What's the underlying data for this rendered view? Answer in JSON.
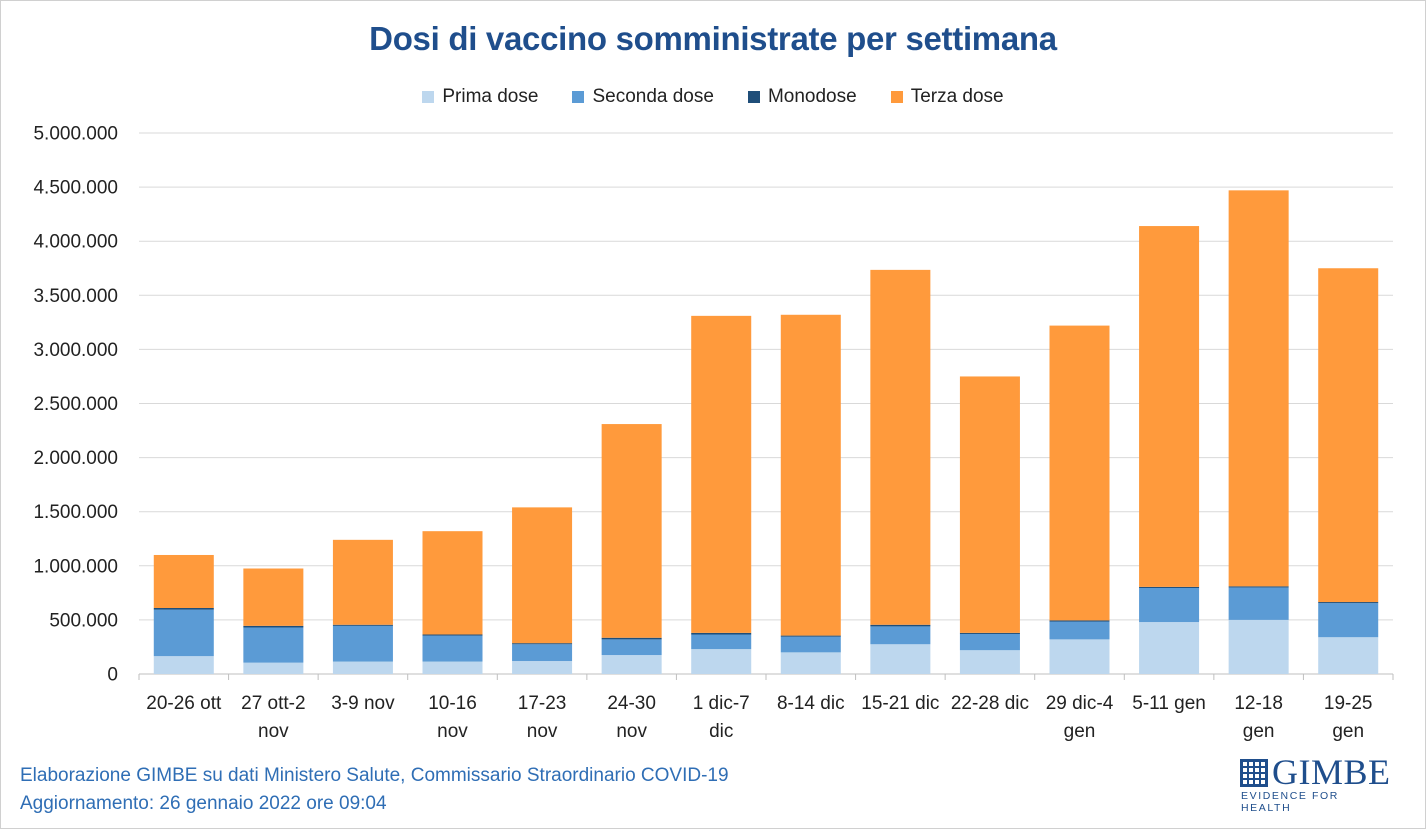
{
  "chart_data": {
    "type": "bar",
    "stacked": true,
    "title": "Dosi di vaccino somministrate per settimana",
    "categories": [
      [
        "20-26 ott"
      ],
      [
        "27 ott-2",
        "nov"
      ],
      [
        "3-9 nov"
      ],
      [
        "10-16",
        "nov"
      ],
      [
        "17-23",
        "nov"
      ],
      [
        "24-30",
        "nov"
      ],
      [
        "1 dic-7",
        "dic"
      ],
      [
        "8-14 dic"
      ],
      [
        "15-21 dic"
      ],
      [
        "22-28 dic"
      ],
      [
        "29 dic-4",
        "gen"
      ],
      [
        "5-11 gen"
      ],
      [
        "12-18",
        "gen"
      ],
      [
        "19-25",
        "gen"
      ]
    ],
    "series": [
      {
        "name": "Prima dose",
        "color": "#bdd7ee",
        "values": [
          165000,
          105000,
          115000,
          115000,
          120000,
          175000,
          230000,
          200000,
          275000,
          220000,
          320000,
          480000,
          500000,
          340000
        ]
      },
      {
        "name": "Seconda dose",
        "color": "#5b9bd5",
        "values": [
          430000,
          325000,
          330000,
          240000,
          155000,
          145000,
          135000,
          145000,
          165000,
          150000,
          165000,
          315000,
          300000,
          315000
        ]
      },
      {
        "name": "Monodose",
        "color": "#1f4e79",
        "values": [
          15000,
          15000,
          10000,
          10000,
          10000,
          15000,
          15000,
          10000,
          15000,
          10000,
          10000,
          10000,
          10000,
          10000
        ]
      },
      {
        "name": "Terza dose",
        "color": "#ff9a3c",
        "values": [
          490000,
          530000,
          785000,
          955000,
          1255000,
          1975000,
          2930000,
          2965000,
          3280000,
          2370000,
          2725000,
          3335000,
          3660000,
          3085000
        ]
      }
    ],
    "yticks": [
      "0",
      "500.000",
      "1.000.000",
      "1.500.000",
      "2.000.000",
      "2.500.000",
      "3.000.000",
      "3.500.000",
      "4.000.000",
      "4.500.000",
      "5.000.000"
    ],
    "ylim": [
      0,
      5000000
    ],
    "grid": true,
    "legend_position": "top"
  },
  "footer": {
    "line1": "Elaborazione GIMBE su dati Ministero Salute, Commissario Straordinario COVID-19",
    "line2": "Aggiornamento: 26 gennaio 2022 ore 09:04"
  },
  "logo": {
    "name": "GIMBE",
    "tagline": "EVIDENCE FOR HEALTH",
    "color": "#1f4e8c"
  }
}
